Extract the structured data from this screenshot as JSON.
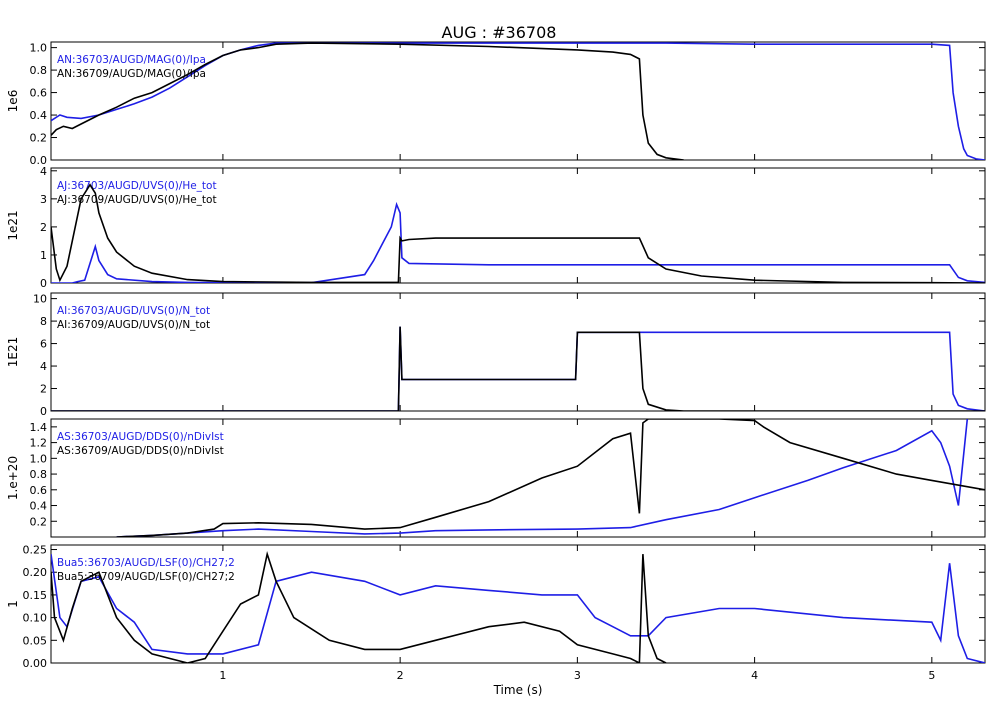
{
  "title": "AUG : #36708",
  "xlabel": "Time (s)",
  "colors": {
    "blue": "#1e1ee6",
    "black": "#000000"
  },
  "chart_data": [
    {
      "type": "line",
      "ylabel": "1e6",
      "ylim": [
        0,
        1.05
      ],
      "yticks": [
        "0.0",
        "0.2",
        "0.4",
        "0.6",
        "0.8",
        "1.0"
      ],
      "ytick_values": [
        0,
        0.2,
        0.4,
        0.6,
        0.8,
        1.0
      ],
      "xlim": [
        0.03,
        5.3
      ],
      "series": [
        {
          "name": "AN:36703/AUGD/MAG(0)/Ipa",
          "color": "blue",
          "x": [
            0.03,
            0.08,
            0.12,
            0.2,
            0.3,
            0.4,
            0.5,
            0.6,
            0.7,
            0.8,
            0.9,
            1.0,
            1.1,
            1.2,
            1.3,
            1.5,
            2.0,
            2.5,
            3.0,
            3.4,
            3.5,
            4.0,
            4.5,
            5.0,
            5.1,
            5.12,
            5.15,
            5.18,
            5.2,
            5.25,
            5.3
          ],
          "y": [
            0.35,
            0.4,
            0.38,
            0.37,
            0.4,
            0.45,
            0.5,
            0.56,
            0.64,
            0.74,
            0.84,
            0.93,
            0.98,
            1.02,
            1.04,
            1.04,
            1.04,
            1.04,
            1.04,
            1.04,
            1.04,
            1.03,
            1.03,
            1.03,
            1.02,
            0.6,
            0.3,
            0.1,
            0.04,
            0.01,
            0.0
          ]
        },
        {
          "name": "AN:36709/AUGD/MAG(0)/Ipa",
          "color": "black",
          "x": [
            0.03,
            0.06,
            0.1,
            0.15,
            0.2,
            0.3,
            0.4,
            0.5,
            0.6,
            0.7,
            0.8,
            0.9,
            1.0,
            1.1,
            1.2,
            1.3,
            1.5,
            2.0,
            2.5,
            3.0,
            3.2,
            3.3,
            3.35,
            3.37,
            3.4,
            3.45,
            3.5,
            3.55,
            3.6
          ],
          "y": [
            0.22,
            0.27,
            0.3,
            0.28,
            0.32,
            0.4,
            0.47,
            0.55,
            0.6,
            0.68,
            0.76,
            0.85,
            0.93,
            0.98,
            1.0,
            1.03,
            1.04,
            1.03,
            1.01,
            0.98,
            0.96,
            0.94,
            0.9,
            0.4,
            0.15,
            0.05,
            0.02,
            0.01,
            0.0
          ]
        }
      ]
    },
    {
      "type": "line",
      "ylabel": "1e21",
      "ylim": [
        0,
        4.1
      ],
      "yticks": [
        "0",
        "1",
        "2",
        "3",
        "4"
      ],
      "ytick_values": [
        0,
        1,
        2,
        3,
        4
      ],
      "xlim": [
        0.03,
        5.3
      ],
      "series": [
        {
          "name": "AJ:36703/AUGD/UVS(0)/He_tot",
          "color": "blue",
          "x": [
            0.03,
            0.1,
            0.15,
            0.18,
            0.22,
            0.25,
            0.28,
            0.3,
            0.35,
            0.4,
            0.6,
            0.8,
            1.0,
            1.5,
            1.8,
            1.85,
            1.9,
            1.95,
            1.98,
            2.0,
            2.01,
            2.05,
            2.5,
            3.0,
            3.35,
            3.5,
            4.0,
            4.5,
            5.0,
            5.1,
            5.15,
            5.2,
            5.3
          ],
          "y": [
            0.0,
            0.0,
            0.0,
            0.05,
            0.1,
            0.7,
            1.3,
            0.8,
            0.3,
            0.15,
            0.05,
            0.02,
            0.01,
            0.01,
            0.3,
            0.8,
            1.4,
            2.0,
            2.8,
            2.5,
            0.9,
            0.7,
            0.65,
            0.65,
            0.65,
            0.65,
            0.65,
            0.65,
            0.65,
            0.65,
            0.2,
            0.08,
            0.02
          ]
        },
        {
          "name": "AJ:36709/AUGD/UVS(0)/He_tot",
          "color": "black",
          "x": [
            0.03,
            0.06,
            0.08,
            0.12,
            0.15,
            0.2,
            0.25,
            0.28,
            0.3,
            0.35,
            0.4,
            0.5,
            0.6,
            0.8,
            1.0,
            1.5,
            1.99,
            2.0,
            2.01,
            2.05,
            2.2,
            2.5,
            3.0,
            3.35,
            3.4,
            3.5,
            3.7,
            4.0,
            4.5,
            5.0,
            5.3
          ],
          "y": [
            2.0,
            0.5,
            0.1,
            0.6,
            1.5,
            3.0,
            3.5,
            3.2,
            2.5,
            1.6,
            1.1,
            0.6,
            0.35,
            0.12,
            0.05,
            0.02,
            0.02,
            1.6,
            1.5,
            1.55,
            1.6,
            1.6,
            1.6,
            1.6,
            0.9,
            0.5,
            0.25,
            0.1,
            0.02,
            0.01,
            0.0
          ]
        }
      ]
    },
    {
      "type": "line",
      "ylabel": "1E21",
      "ylim": [
        0,
        10.5
      ],
      "yticks": [
        "0",
        "2",
        "4",
        "6",
        "8",
        "10"
      ],
      "ytick_values": [
        0,
        2,
        4,
        6,
        8,
        10
      ],
      "xlim": [
        0.03,
        5.3
      ],
      "series": [
        {
          "name": "AI:36703/AUGD/UVS(0)/N_tot",
          "color": "blue",
          "x": [
            0.03,
            0.5,
            1.0,
            1.99,
            2.0,
            2.01,
            2.05,
            2.5,
            2.99,
            3.0,
            3.02,
            3.1,
            3.5,
            4.0,
            4.5,
            5.0,
            5.1,
            5.12,
            5.15,
            5.2,
            5.3
          ],
          "y": [
            0.0,
            0.0,
            0.0,
            0.0,
            7.5,
            2.8,
            2.8,
            2.8,
            2.8,
            7.0,
            7.0,
            7.0,
            7.0,
            7.0,
            7.0,
            7.0,
            7.0,
            1.5,
            0.5,
            0.2,
            0.0
          ]
        },
        {
          "name": "AI:36709/AUGD/UVS(0)/N_tot",
          "color": "black",
          "x": [
            0.03,
            0.5,
            1.0,
            1.99,
            2.0,
            2.01,
            2.05,
            2.5,
            2.99,
            3.0,
            3.02,
            3.3,
            3.35,
            3.37,
            3.4,
            3.5,
            3.6,
            5.3
          ],
          "y": [
            0.0,
            0.0,
            0.0,
            0.0,
            7.5,
            2.8,
            2.8,
            2.8,
            2.8,
            7.0,
            7.0,
            7.0,
            7.0,
            2.0,
            0.6,
            0.1,
            0.0,
            0.0
          ]
        }
      ]
    },
    {
      "type": "line",
      "ylabel": "1.e+20",
      "ylim": [
        0,
        1.5
      ],
      "yticks": [
        "0.2",
        "0.4",
        "0.6",
        "0.8",
        "1.0",
        "1.2",
        "1.4"
      ],
      "ytick_values": [
        0.2,
        0.4,
        0.6,
        0.8,
        1.0,
        1.2,
        1.4
      ],
      "xlim": [
        0.03,
        5.3
      ],
      "series": [
        {
          "name": "AS:36703/AUGD/DDS(0)/nDivIst",
          "color": "blue",
          "x": [
            0.4,
            0.6,
            0.8,
            1.0,
            1.2,
            1.5,
            1.8,
            2.0,
            2.2,
            2.5,
            3.0,
            3.3,
            3.5,
            3.8,
            4.0,
            4.3,
            4.5,
            4.8,
            5.0,
            5.05,
            5.1,
            5.15,
            5.2
          ],
          "y": [
            0.0,
            0.02,
            0.05,
            0.08,
            0.1,
            0.07,
            0.04,
            0.05,
            0.08,
            0.09,
            0.1,
            0.12,
            0.22,
            0.35,
            0.5,
            0.72,
            0.88,
            1.1,
            1.35,
            1.2,
            0.9,
            0.4,
            1.5
          ]
        },
        {
          "name": "AS:36709/AUGD/DDS(0)/nDivIst",
          "color": "black",
          "x": [
            0.4,
            0.6,
            0.8,
            0.95,
            1.0,
            1.2,
            1.5,
            1.8,
            2.0,
            2.2,
            2.5,
            2.8,
            3.0,
            3.2,
            3.3,
            3.35,
            3.37,
            3.4,
            3.8,
            4.0,
            4.05,
            4.2,
            4.5,
            4.8,
            5.0,
            5.3
          ],
          "y": [
            0.0,
            0.02,
            0.05,
            0.1,
            0.17,
            0.18,
            0.16,
            0.1,
            0.12,
            0.25,
            0.45,
            0.75,
            0.9,
            1.25,
            1.32,
            0.3,
            1.45,
            1.5,
            1.5,
            1.48,
            1.4,
            1.2,
            1.0,
            0.8,
            0.72,
            0.6
          ]
        }
      ]
    },
    {
      "type": "line",
      "ylabel": "1",
      "ylim": [
        0,
        0.26
      ],
      "yticks": [
        "0.00",
        "0.05",
        "0.10",
        "0.15",
        "0.20",
        "0.25"
      ],
      "ytick_values": [
        0,
        0.05,
        0.1,
        0.15,
        0.2,
        0.25
      ],
      "xlim": [
        0.03,
        5.3
      ],
      "series": [
        {
          "name": "Bua5:36703/AUGD/LSF(0)/CH27;2",
          "color": "blue",
          "x": [
            0.03,
            0.08,
            0.12,
            0.2,
            0.3,
            0.4,
            0.5,
            0.6,
            0.8,
            1.0,
            1.2,
            1.3,
            1.5,
            1.8,
            2.0,
            2.2,
            2.5,
            2.8,
            3.0,
            3.1,
            3.2,
            3.3,
            3.4,
            3.5,
            3.8,
            4.0,
            4.5,
            5.0,
            5.05,
            5.1,
            5.15,
            5.2,
            5.3
          ],
          "y": [
            0.24,
            0.1,
            0.08,
            0.18,
            0.19,
            0.12,
            0.09,
            0.03,
            0.02,
            0.02,
            0.04,
            0.18,
            0.2,
            0.18,
            0.15,
            0.17,
            0.16,
            0.15,
            0.15,
            0.1,
            0.08,
            0.06,
            0.06,
            0.1,
            0.12,
            0.12,
            0.1,
            0.09,
            0.05,
            0.22,
            0.06,
            0.01,
            0.0
          ]
        },
        {
          "name": "Bua5:36709/AUGD/LSF(0)/CH27;2",
          "color": "black",
          "x": [
            0.03,
            0.05,
            0.1,
            0.15,
            0.2,
            0.3,
            0.35,
            0.4,
            0.5,
            0.6,
            0.8,
            0.9,
            1.0,
            1.1,
            1.2,
            1.25,
            1.3,
            1.4,
            1.6,
            1.8,
            2.0,
            2.2,
            2.5,
            2.7,
            2.9,
            3.0,
            3.2,
            3.3,
            3.35,
            3.37,
            3.4,
            3.45,
            3.5
          ],
          "y": [
            0.2,
            0.1,
            0.05,
            0.12,
            0.18,
            0.2,
            0.15,
            0.1,
            0.05,
            0.02,
            0.0,
            0.01,
            0.07,
            0.13,
            0.15,
            0.24,
            0.18,
            0.1,
            0.05,
            0.03,
            0.03,
            0.05,
            0.08,
            0.09,
            0.07,
            0.04,
            0.02,
            0.01,
            0.0,
            0.24,
            0.06,
            0.01,
            0.0
          ]
        }
      ]
    }
  ],
  "xticks": [
    "1",
    "2",
    "3",
    "4",
    "5"
  ],
  "xtick_values": [
    1,
    2,
    3,
    4,
    5
  ]
}
